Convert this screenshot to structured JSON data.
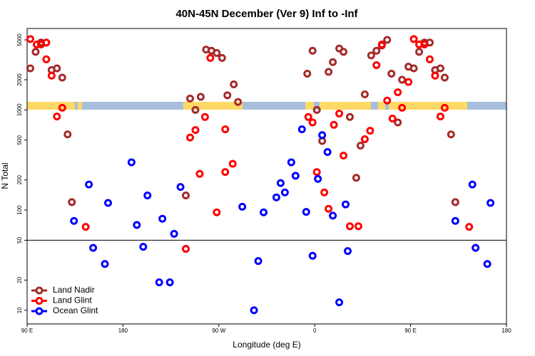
{
  "chart_data": {
    "type": "scatter",
    "title": "40N-45N December (Ver 9)   Inf to -Inf",
    "x_label": "Longitude (deg E)",
    "y_label": "N Total",
    "xlim": [
      90,
      540
    ],
    "xticks": [
      {
        "value": 90,
        "label": "90 E"
      },
      {
        "value": 180,
        "label": "180"
      },
      {
        "value": 270,
        "label": "90 W"
      },
      {
        "value": 360,
        "label": "0"
      },
      {
        "value": 450,
        "label": "90 E"
      },
      {
        "value": 540,
        "label": "180"
      }
    ],
    "ylim": [
      7.3,
      6500
    ],
    "yticks": [
      10,
      20,
      50,
      100,
      200,
      500,
      1000,
      2000,
      5000
    ],
    "log_y": true,
    "hline": 50,
    "legend": "bottom-left",
    "series": [
      {
        "name": "Land Nadir",
        "color": "#a52a2a",
        "x": [
          93,
          98,
          103,
          113,
          118,
          123,
          128,
          132,
          239,
          243,
          248,
          253,
          258,
          263,
          268,
          273,
          278,
          284,
          288,
          353,
          358,
          362,
          367,
          373,
          377,
          383,
          387,
          393,
          399,
          403,
          407,
          413,
          418,
          423,
          428,
          432,
          438,
          442,
          448,
          453,
          458,
          463,
          468,
          473,
          478,
          482,
          488,
          492
        ],
        "values": [
          2600,
          3800,
          4700,
          2500,
          2600,
          2100,
          570,
          120,
          140,
          1300,
          1000,
          1350,
          4000,
          3900,
          3700,
          3300,
          1400,
          1800,
          1200,
          2300,
          3900,
          1000,
          490,
          2400,
          3000,
          4100,
          3800,
          850,
          210,
          440,
          1430,
          3500,
          3900,
          4400,
          5000,
          2300,
          750,
          2000,
          2700,
          2600,
          3800,
          4700,
          4700,
          2500,
          2600,
          2100,
          570,
          120
        ]
      },
      {
        "name": "Land Glint",
        "color": "#ff0000",
        "x": [
          93,
          99,
          103,
          108,
          108,
          113,
          118,
          123,
          145,
          239,
          243,
          248,
          252,
          257,
          262,
          268,
          276,
          276,
          283,
          354,
          358,
          362,
          369,
          373,
          378,
          383,
          387,
          393,
          401,
          407,
          412,
          418,
          423,
          428,
          433,
          438,
          442,
          448,
          453,
          458,
          463,
          468,
          473,
          478,
          482,
          505
        ],
        "values": [
          5100,
          4500,
          4500,
          4700,
          3200,
          2200,
          860,
          1050,
          68,
          41,
          530,
          630,
          230,
          850,
          3300,
          95,
          240,
          640,
          290,
          850,
          750,
          240,
          150,
          103,
          710,
          920,
          350,
          69,
          69,
          510,
          620,
          2800,
          4500,
          1240,
          820,
          1500,
          1050,
          1900,
          5100,
          4500,
          4500,
          3200,
          2200,
          860,
          1050,
          68
        ]
      },
      {
        "name": "Ocean Glint",
        "color": "#0000ff",
        "x": [
          134,
          148,
          152,
          163,
          166,
          188,
          193,
          199,
          203,
          214,
          217,
          224,
          228,
          234,
          292,
          303,
          307,
          312,
          324,
          328,
          332,
          338,
          342,
          348,
          352,
          358,
          363,
          367,
          372,
          377,
          383,
          389,
          391,
          492,
          508,
          511,
          522,
          525
        ],
        "values": [
          78,
          180,
          42,
          29,
          118,
          300,
          71,
          43,
          140,
          19,
          82,
          19,
          58,
          170,
          108,
          10,
          31,
          95,
          134,
          186,
          150,
          300,
          220,
          640,
          96,
          35,
          205,
          560,
          380,
          88,
          12,
          114,
          39,
          78,
          180,
          42,
          29,
          118
        ]
      }
    ]
  }
}
